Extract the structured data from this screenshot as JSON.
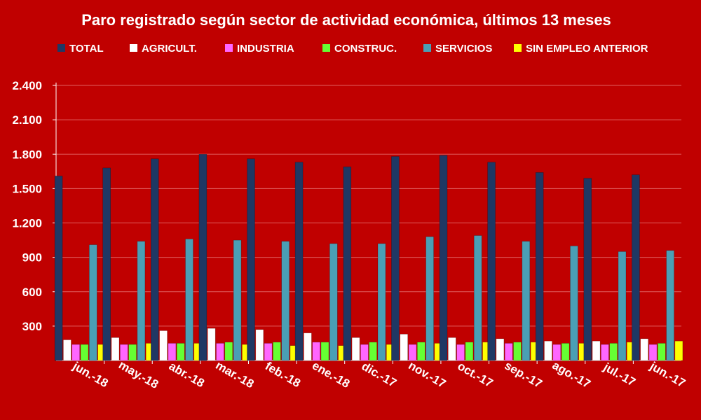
{
  "chart_data": {
    "type": "bar",
    "title": "Paro registrado según sector de actividad económica, últimos 13 meses",
    "categories": [
      "jun.-18",
      "may.-18",
      "abr.-18",
      "mar.-18",
      "feb.-18",
      "ene.-18",
      "dic.-17",
      "nov.-17",
      "oct.-17",
      "sep.-17",
      "ago.-17",
      "jul.-17",
      "jun.-17"
    ],
    "ylim": [
      0,
      2400
    ],
    "yticks": [
      300,
      600,
      900,
      1200,
      1500,
      1800,
      2100,
      2400
    ],
    "ytick_labels": [
      "300",
      "600",
      "900",
      "1.200",
      "1.500",
      "1.800",
      "2.100",
      "2.400"
    ],
    "grid": true,
    "legend_position": "top",
    "series": [
      {
        "name": "TOTAL",
        "color": "#1f3864",
        "values": [
          1610,
          1680,
          1760,
          1800,
          1760,
          1730,
          1690,
          1780,
          1790,
          1730,
          1640,
          1590,
          1620
        ]
      },
      {
        "name": "AGRICULT.",
        "color": "#ffffff",
        "values": [
          180,
          200,
          260,
          280,
          270,
          240,
          200,
          230,
          200,
          190,
          170,
          170,
          190
        ]
      },
      {
        "name": "INDUSTRIA",
        "color": "#ff66ff",
        "values": [
          140,
          140,
          150,
          150,
          150,
          160,
          140,
          140,
          140,
          150,
          140,
          140,
          140
        ]
      },
      {
        "name": "CONSTRUC.",
        "color": "#66ff33",
        "values": [
          140,
          140,
          150,
          160,
          160,
          160,
          160,
          160,
          160,
          160,
          150,
          150,
          150
        ]
      },
      {
        "name": "SERVICIOS",
        "color": "#4a9fb5",
        "values": [
          1010,
          1040,
          1060,
          1050,
          1040,
          1020,
          1020,
          1080,
          1090,
          1040,
          1000,
          950,
          960
        ]
      },
      {
        "name": "SIN EMPLEO ANTERIOR",
        "color": "#ffff00",
        "values": [
          140,
          150,
          150,
          140,
          130,
          130,
          140,
          150,
          160,
          160,
          150,
          160,
          170
        ]
      }
    ]
  }
}
